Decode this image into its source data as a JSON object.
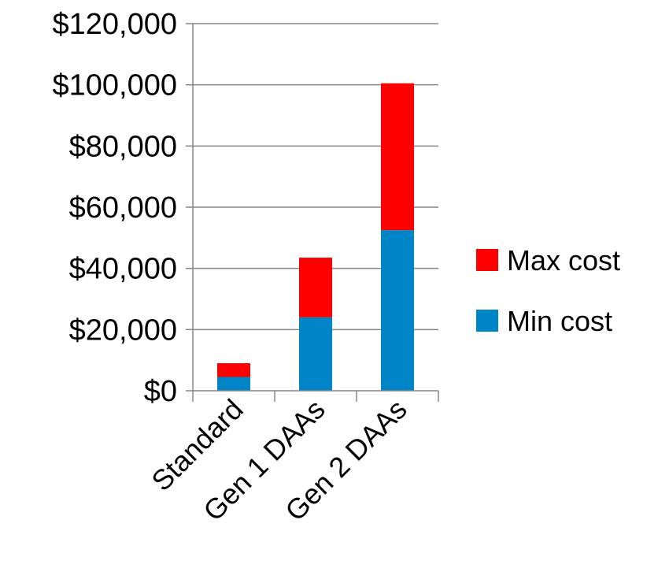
{
  "chart_data": {
    "type": "bar",
    "stacked": true,
    "categories": [
      "Standard",
      "Gen 1 DAAs",
      "Gen 2 DAAs"
    ],
    "series": [
      {
        "name": "Min cost",
        "values": [
          4500,
          24000,
          52500
        ],
        "color": "#0084c8"
      },
      {
        "name": "Max cost",
        "values": [
          4500,
          19500,
          48000
        ],
        "color": "#ff0000"
      }
    ],
    "ylim": [
      0,
      120000
    ],
    "yticks": [
      0,
      20000,
      40000,
      60000,
      80000,
      100000,
      120000
    ],
    "ytick_labels": [
      "$0",
      "$20,000",
      "$40,000",
      "$60,000",
      "$80,000",
      "$100,000",
      "$120,000"
    ],
    "grid": true,
    "legend": {
      "placement": "right",
      "entries": [
        "Max cost",
        "Min cost"
      ]
    }
  }
}
